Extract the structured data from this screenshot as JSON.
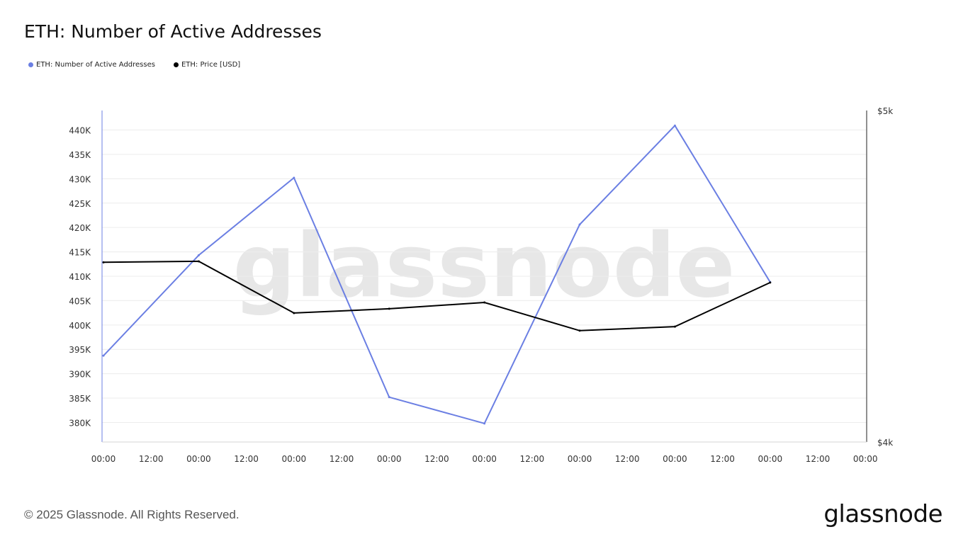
{
  "header": {
    "title": "ETH: Number of Active Addresses"
  },
  "legend": [
    {
      "label": "ETH: Number of Active Addresses",
      "color": "#6b7fe3"
    },
    {
      "label": "ETH: Price [USD]",
      "color": "#000000"
    }
  ],
  "chart_data": {
    "type": "line",
    "title": "ETH: Number of Active Addresses",
    "x_tick_labels": [
      "00:00",
      "12:00",
      "00:00",
      "12:00",
      "00:00",
      "12:00",
      "00:00",
      "12:00",
      "00:00",
      "12:00",
      "00:00",
      "12:00",
      "00:00",
      "12:00",
      "00:00",
      "12:00",
      "00:00"
    ],
    "grid": true,
    "legend_position": "top-left",
    "y_left": {
      "ticks": [
        "380K",
        "385K",
        "390K",
        "395K",
        "400K",
        "405K",
        "410K",
        "415K",
        "420K",
        "425K",
        "430K",
        "435K",
        "440K"
      ],
      "tick_values": [
        380000,
        385000,
        390000,
        395000,
        400000,
        405000,
        410000,
        415000,
        420000,
        425000,
        430000,
        435000,
        440000
      ],
      "range": [
        376000,
        444000
      ]
    },
    "y_right": {
      "ticks": [
        "$4k",
        "$5k"
      ],
      "tick_values": [
        4000,
        5000
      ],
      "range": [
        4000,
        5000
      ]
    },
    "series": [
      {
        "name": "ETH: Number of Active Addresses",
        "axis": "left",
        "color": "#6b7fe3",
        "x_index": [
          0,
          2,
          4,
          6,
          8,
          10,
          12,
          14
        ],
        "values": [
          393700,
          414300,
          430200,
          385200,
          379800,
          420600,
          440900,
          408800
        ]
      },
      {
        "name": "ETH: Price [USD]",
        "axis": "right",
        "color": "#000000",
        "x_index": [
          0,
          2,
          4,
          6,
          8,
          10,
          12,
          14
        ],
        "values": [
          4542,
          4545,
          4389,
          4402,
          4421,
          4336,
          4348,
          4481
        ]
      }
    ]
  },
  "watermark": "glassnode",
  "footer": {
    "copyright": "© 2025 Glassnode. All Rights Reserved.",
    "logo_text": "glassnode"
  }
}
